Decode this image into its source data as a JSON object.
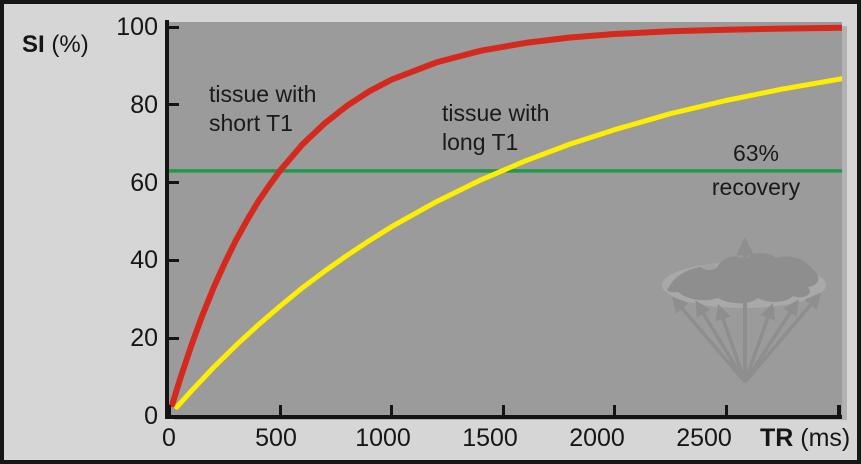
{
  "figure": {
    "y_axis": {
      "bold": "SI",
      "rest": " (%)"
    },
    "x_axis": {
      "bold": "TR",
      "rest": " (ms)"
    },
    "watermark_icon": "globe-with-radiating-arrows"
  },
  "chart_data": {
    "type": "line",
    "xlabel": "TR (ms)",
    "ylabel": "SI (%)",
    "xlim": [
      0,
      3020
    ],
    "ylim": [
      0,
      100
    ],
    "x_ticks": [
      0,
      500,
      1000,
      1500,
      2000,
      2500
    ],
    "y_ticks": [
      0,
      20,
      40,
      60,
      80,
      100
    ],
    "grid": false,
    "plot_background": "#9b9b9b",
    "series": [
      {
        "name": "tissue with short T1",
        "label_line1": "tissue with",
        "label_line2": "short T1",
        "color": "#d6291d",
        "t1_ms": 500,
        "points": [
          [
            15,
            3.0
          ],
          [
            50,
            9.5
          ],
          [
            100,
            18.1
          ],
          [
            150,
            25.9
          ],
          [
            200,
            33.0
          ],
          [
            250,
            39.3
          ],
          [
            300,
            45.1
          ],
          [
            350,
            50.3
          ],
          [
            400,
            55.1
          ],
          [
            450,
            59.3
          ],
          [
            500,
            63.2
          ],
          [
            600,
            69.9
          ],
          [
            700,
            75.3
          ],
          [
            800,
            79.8
          ],
          [
            900,
            83.5
          ],
          [
            1000,
            86.5
          ],
          [
            1200,
            90.9
          ],
          [
            1400,
            93.9
          ],
          [
            1600,
            95.9
          ],
          [
            1800,
            97.3
          ],
          [
            2000,
            98.2
          ],
          [
            2250,
            98.9
          ],
          [
            2500,
            99.3
          ],
          [
            2750,
            99.6
          ],
          [
            3020,
            99.8
          ]
        ]
      },
      {
        "name": "tissue with long T1",
        "label_line1": "tissue with",
        "label_line2": "long T1",
        "color": "#feee00",
        "t1_ms": 1500,
        "points": [
          [
            35,
            2.3
          ],
          [
            100,
            6.4
          ],
          [
            200,
            12.5
          ],
          [
            300,
            18.1
          ],
          [
            400,
            23.4
          ],
          [
            500,
            28.3
          ],
          [
            600,
            33.0
          ],
          [
            700,
            37.3
          ],
          [
            800,
            41.3
          ],
          [
            900,
            45.1
          ],
          [
            1000,
            48.7
          ],
          [
            1200,
            55.1
          ],
          [
            1400,
            60.7
          ],
          [
            1600,
            65.6
          ],
          [
            1800,
            69.9
          ],
          [
            2000,
            73.6
          ],
          [
            2250,
            77.7
          ],
          [
            2500,
            81.1
          ],
          [
            2750,
            84.0
          ],
          [
            3020,
            86.7
          ]
        ]
      }
    ],
    "reference_line": {
      "value": 63,
      "color": "#22984d",
      "label_line1": "63%",
      "label_line2": "recovery"
    }
  }
}
